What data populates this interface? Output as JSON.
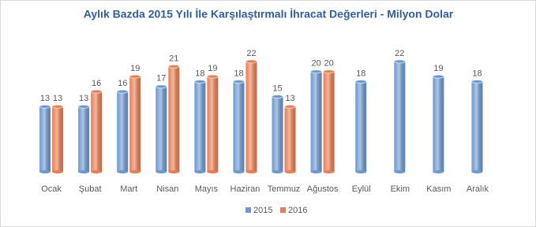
{
  "chart_data": {
    "type": "bar",
    "title": "Aylık Bazda 2015 Yılı İle Karşılaştırmalı İhracat Değerleri - Milyon Dolar",
    "categories": [
      "Ocak",
      "Şubat",
      "Mart",
      "Nisan",
      "Mayıs",
      "Haziran",
      "Temmuz",
      "Ağustos",
      "Eylül",
      "Ekim",
      "Kasım",
      "Aralık"
    ],
    "series": [
      {
        "name": "2015",
        "color": "#6a98d3",
        "values": [
          13,
          13,
          16,
          17,
          18,
          18,
          15,
          20,
          18,
          22,
          19,
          18
        ]
      },
      {
        "name": "2016",
        "color": "#ec7c4e",
        "values": [
          13,
          16,
          19,
          21,
          19,
          22,
          13,
          20,
          null,
          null,
          null,
          null
        ]
      }
    ],
    "legend": "bottom"
  }
}
